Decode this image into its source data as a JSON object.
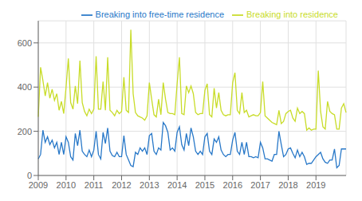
{
  "chart_data": {
    "type": "line",
    "categories": [
      "2009",
      null,
      null,
      null,
      null,
      null,
      null,
      null,
      null,
      null,
      null,
      null,
      "2010",
      null,
      null,
      null,
      null,
      null,
      null,
      null,
      null,
      null,
      null,
      null,
      "2011",
      null,
      null,
      null,
      null,
      null,
      null,
      null,
      null,
      null,
      null,
      null,
      "2012",
      null,
      null,
      null,
      null,
      null,
      null,
      null,
      null,
      null,
      null,
      null,
      "2013",
      null,
      null,
      null,
      null,
      null,
      null,
      null,
      null,
      null,
      null,
      null,
      "2014",
      null,
      null,
      null,
      null,
      null,
      null,
      null,
      null,
      null,
      null,
      null,
      "2015",
      null,
      null,
      null,
      null,
      null,
      null,
      null,
      null,
      null,
      null,
      null,
      "2016",
      null,
      null,
      null,
      null,
      null,
      null,
      null,
      null,
      null,
      null,
      null,
      "2017",
      null,
      null,
      null,
      null,
      null,
      null,
      null,
      null,
      null,
      null,
      null,
      "2018",
      null,
      null,
      null,
      null,
      null,
      null,
      null,
      null,
      null,
      null,
      null,
      "2019",
      null,
      null,
      null,
      null,
      null,
      null,
      null,
      null,
      null,
      null,
      null,
      null,
      null
    ],
    "series": [
      {
        "name": "Breaking into residence",
        "color": "#c8dc28",
        "values": [
          265,
          490,
          430,
          360,
          420,
          350,
          390,
          340,
          370,
          295,
          335,
          280,
          400,
          530,
          330,
          300,
          405,
          325,
          520,
          330,
          290,
          270,
          300,
          280,
          300,
          540,
          300,
          300,
          425,
          295,
          535,
          295,
          285,
          270,
          295,
          280,
          290,
          445,
          295,
          285,
          660,
          370,
          285,
          270,
          265,
          260,
          250,
          270,
          420,
          345,
          275,
          265,
          345,
          275,
          420,
          345,
          285,
          280,
          280,
          275,
          415,
          535,
          280,
          275,
          405,
          375,
          405,
          370,
          285,
          275,
          280,
          280,
          385,
          415,
          275,
          265,
          395,
          305,
          375,
          295,
          275,
          270,
          275,
          275,
          420,
          465,
          295,
          280,
          375,
          285,
          295,
          265,
          270,
          275,
          270,
          270,
          285,
          425,
          270,
          260,
          250,
          240,
          235,
          230,
          295,
          235,
          245,
          280,
          290,
          295,
          260,
          245,
          305,
          280,
          290,
          280,
          205,
          215,
          205,
          210,
          210,
          475,
          290,
          220,
          210,
          335,
          290,
          280,
          275,
          210,
          210,
          305,
          325,
          285
        ]
      },
      {
        "name": "Breaking into free-time residence",
        "color": "#2878c8",
        "values": [
          75,
          95,
          205,
          150,
          175,
          140,
          160,
          125,
          150,
          95,
          150,
          95,
          175,
          150,
          85,
          70,
          190,
          135,
          205,
          110,
          95,
          85,
          115,
          85,
          115,
          200,
          95,
          75,
          195,
          145,
          215,
          110,
          90,
          85,
          105,
          85,
          85,
          180,
          95,
          70,
          45,
          40,
          105,
          95,
          125,
          110,
          125,
          95,
          180,
          190,
          110,
          95,
          125,
          115,
          240,
          225,
          195,
          115,
          125,
          110,
          195,
          220,
          140,
          115,
          190,
          135,
          215,
          175,
          110,
          95,
          110,
          95,
          175,
          190,
          110,
          95,
          165,
          150,
          175,
          115,
          95,
          85,
          95,
          95,
          160,
          195,
          110,
          95,
          150,
          95,
          150,
          85,
          85,
          80,
          85,
          80,
          150,
          125,
          75,
          75,
          70,
          65,
          95,
          95,
          200,
          140,
          85,
          95,
          120,
          125,
          100,
          80,
          115,
          85,
          105,
          85,
          50,
          55,
          55,
          70,
          85,
          95,
          105,
          75,
          60,
          55,
          70,
          70,
          120,
          35,
          45,
          120,
          120,
          120
        ]
      }
    ],
    "ylim": [
      0,
      700
    ],
    "yticks": [
      0,
      200,
      400,
      600
    ],
    "grid": true,
    "legend": "upper right"
  }
}
